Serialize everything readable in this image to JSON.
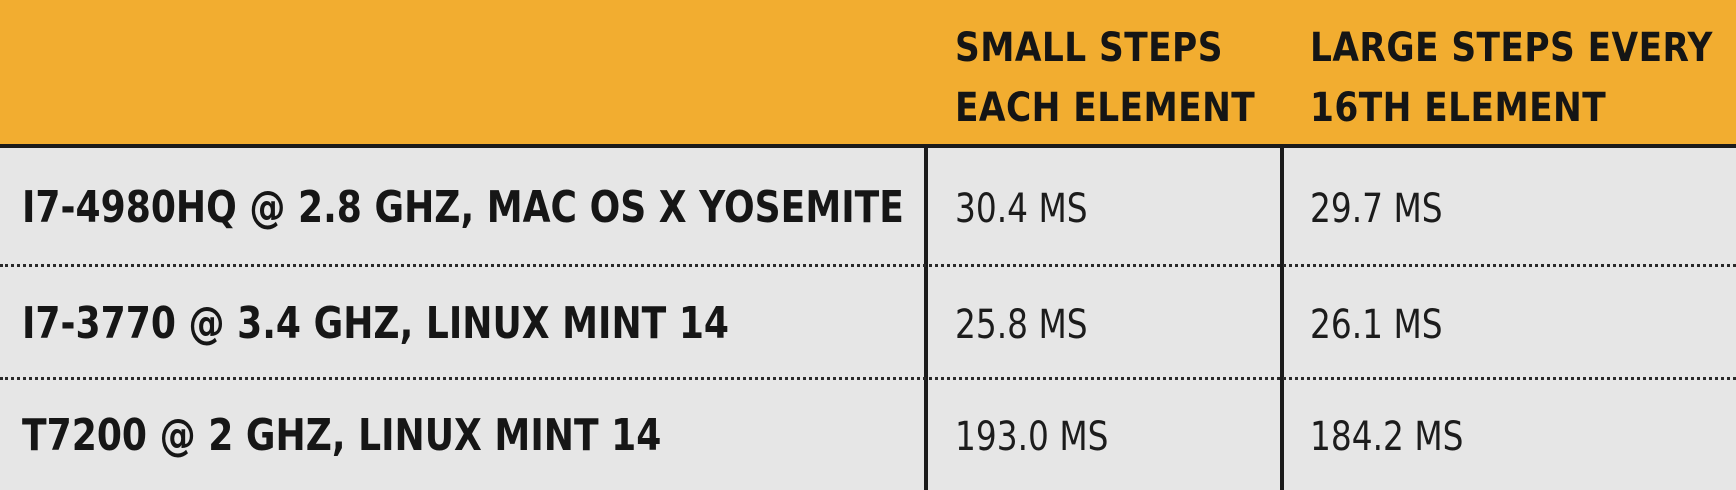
{
  "header": {
    "col1_line1": "SMALL STEPS",
    "col1_line2": "EACH ELEMENT",
    "col2_line1": "LARGE STEPS EVERY",
    "col2_line2": "16TH ELEMENT"
  },
  "rows": [
    {
      "label": "I7-4980HQ @ 2.8 GHZ, MAC OS X YOSEMITE",
      "small": "30.4 MS",
      "large": "29.7 MS"
    },
    {
      "label": "I7-3770 @ 3.4 GHZ, LINUX MINT 14",
      "small": "25.8 MS",
      "large": "26.1 MS"
    },
    {
      "label": "T7200 @ 2 GHZ, LINUX MINT 14",
      "small": "193.0 MS",
      "large": "184.2 MS"
    }
  ],
  "colors": {
    "header_bg": "#f2ad30",
    "body_bg": "#e6e6e6",
    "rule": "#1b1b1b"
  }
}
